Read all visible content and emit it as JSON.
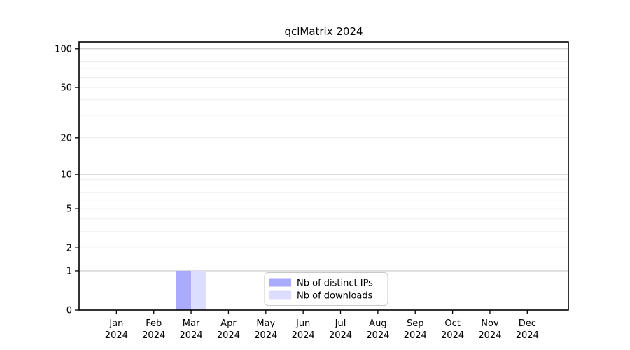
{
  "title": "qclMatrix 2024",
  "chart_data": {
    "type": "bar",
    "title": "qclMatrix 2024",
    "categories": [
      "Jan",
      "Feb",
      "Mar",
      "Apr",
      "May",
      "Jun",
      "Jul",
      "Aug",
      "Sep",
      "Oct",
      "Nov",
      "Dec"
    ],
    "category_year": "2024",
    "series": [
      {
        "name": "Nb of distinct IPs",
        "color": "#aaaaff",
        "values": [
          0,
          0,
          1,
          0,
          0,
          0,
          0,
          0,
          0,
          0,
          0,
          0
        ]
      },
      {
        "name": "Nb of downloads",
        "color": "#ddddff",
        "values": [
          0,
          0,
          1,
          0,
          0,
          0,
          0,
          0,
          0,
          0,
          0,
          0
        ]
      }
    ],
    "yscale": "log1p",
    "ylim": [
      0,
      113
    ],
    "yticks": [
      0,
      1,
      2,
      5,
      10,
      20,
      50,
      100
    ],
    "grid": {
      "major_values": [
        1,
        10,
        100
      ],
      "minor_values": [
        2,
        3,
        4,
        5,
        6,
        7,
        8,
        9,
        20,
        30,
        40,
        50,
        60,
        70,
        80,
        90
      ],
      "major_color": "#c8c8c8",
      "minor_color": "#ececec"
    },
    "legend": {
      "position": "inside-bottom-center",
      "entries": [
        "Nb of distinct IPs",
        "Nb of downloads"
      ]
    },
    "colors": {
      "axis": "#000000",
      "background": "#ffffff",
      "text": "#000000",
      "legend_border": "#c8c8c8"
    }
  }
}
